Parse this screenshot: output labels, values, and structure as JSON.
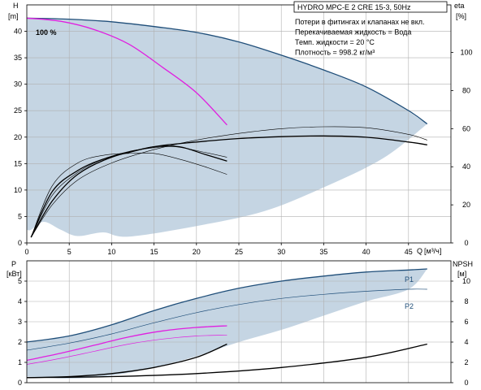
{
  "colors": {
    "envelope": "#c5d5e3",
    "head_curve": "#1f4e79",
    "partial_curve": "#e020e0",
    "efficiency": "#000000",
    "grid": "#b0b0b0",
    "power": "#1f4e79"
  },
  "chart_data": [
    {
      "type": "line",
      "title": "HYDRO MPC-E 2 CRE 15-3, 50Hz",
      "ylabel": "H",
      "yunit": "[m]",
      "y2label": "eta",
      "y2unit": "[%]",
      "xlabel": "Q",
      "xunit": "[м³/ч]",
      "xlim": [
        0,
        50
      ],
      "ylim": [
        0,
        45
      ],
      "y2lim": [
        0,
        125
      ],
      "grid": true,
      "x_ticks": [
        0,
        5,
        10,
        15,
        20,
        25,
        30,
        35,
        40,
        45
      ],
      "y_ticks": [
        0,
        5,
        10,
        15,
        20,
        25,
        30,
        35,
        40
      ],
      "y2_ticks": [
        0,
        20,
        40,
        60,
        80,
        100
      ],
      "annotations": [
        "Потери в фитингах и клапанах не вкл.",
        "Перекачиваемая жидкость = Вода",
        "Темп. жидкости = 20 °C",
        "Плотность = 998.2 кг/м³"
      ],
      "curve_label": "100 %",
      "envelope": {
        "upper": [
          [
            0,
            42.5
          ],
          [
            10,
            41.8
          ],
          [
            20,
            39.8
          ],
          [
            30,
            35.5
          ],
          [
            40,
            29.5
          ],
          [
            47.2,
            22.5
          ]
        ],
        "lower": [
          [
            47.2,
            22.5
          ],
          [
            42,
            16
          ],
          [
            35,
            10.5
          ],
          [
            28,
            6
          ],
          [
            20,
            3.2
          ],
          [
            12,
            1.2
          ],
          [
            9,
            2
          ],
          [
            6,
            1.3
          ],
          [
            4,
            2.5
          ],
          [
            2,
            4
          ],
          [
            0.5,
            2.5
          ],
          [
            0,
            2.5
          ]
        ]
      },
      "series": [
        {
          "role": "head-max",
          "axis": "y",
          "values": [
            [
              0,
              42.5
            ],
            [
              5,
              42.3
            ],
            [
              10,
              41.8
            ],
            [
              15,
              40.9
            ],
            [
              20,
              39.8
            ],
            [
              25,
              38
            ],
            [
              30,
              35.5
            ],
            [
              35,
              32.7
            ],
            [
              40,
              29.5
            ],
            [
              45,
              25
            ],
            [
              47.2,
              22.5
            ]
          ]
        },
        {
          "role": "head-one-pump",
          "axis": "y",
          "values": [
            [
              0,
              42.5
            ],
            [
              4,
              41.9
            ],
            [
              8,
              40.3
            ],
            [
              12,
              37.6
            ],
            [
              16,
              33.2
            ],
            [
              20,
              28.4
            ],
            [
              23.6,
              22.3
            ]
          ]
        },
        {
          "role": "efficiency-two-pumps",
          "axis": "y2",
          "values": [
            [
              0.5,
              3
            ],
            [
              3,
              22
            ],
            [
              6,
              36
            ],
            [
              10,
              45
            ],
            [
              15,
              50.5
            ],
            [
              20,
              53
            ],
            [
              25,
              54.8
            ],
            [
              30,
              55.8
            ],
            [
              35,
              56.2
            ],
            [
              40,
              55.5
            ],
            [
              45,
              53
            ],
            [
              47.2,
              51.5
            ]
          ]
        },
        {
          "role": "efficiency-two-pumps-thin",
          "axis": "y2",
          "values": [
            [
              0.5,
              3
            ],
            [
              3,
              20
            ],
            [
              6,
              33
            ],
            [
              10,
              42
            ],
            [
              15,
              49
            ],
            [
              20,
              54
            ],
            [
              25,
              57.5
            ],
            [
              30,
              60
            ],
            [
              35,
              61
            ],
            [
              40,
              60.5
            ],
            [
              45,
              57
            ],
            [
              47.2,
              54
            ]
          ]
        },
        {
          "role": "efficiency-one-pump",
          "axis": "y2",
          "values": [
            [
              0.5,
              3
            ],
            [
              3,
              27
            ],
            [
              6,
              38
            ],
            [
              9,
              44
            ],
            [
              12,
              47.5
            ],
            [
              15,
              50.5
            ],
            [
              18,
              50.5
            ],
            [
              21,
              46.5
            ],
            [
              23.6,
              43
            ]
          ]
        },
        {
          "role": "efficiency-one-pump-thin",
          "axis": "y2",
          "values": [
            [
              0.5,
              3
            ],
            [
              3,
              25
            ],
            [
              6,
              37
            ],
            [
              9,
              44
            ],
            [
              12,
              48
            ],
            [
              15,
              50
            ],
            [
              17.5,
              50.5
            ],
            [
              20.5,
              48
            ],
            [
              23.6,
              45
            ]
          ]
        },
        {
          "role": "efficiency-one-pump-thin-2",
          "axis": "y2",
          "values": [
            [
              0.5,
              3
            ],
            [
              3,
              30
            ],
            [
              6,
              42
            ],
            [
              9,
              46
            ],
            [
              12,
              47
            ],
            [
              15,
              47
            ],
            [
              18,
              44
            ],
            [
              21,
              40
            ],
            [
              23.6,
              36
            ]
          ]
        }
      ]
    },
    {
      "type": "line",
      "ylabel": "P",
      "yunit": "[кВт]",
      "y2label": "NPSH",
      "y2unit": "[м]",
      "xlim": [
        0,
        50
      ],
      "ylim": [
        0,
        6
      ],
      "y2lim": [
        0,
        12
      ],
      "grid": true,
      "y_ticks": [
        0,
        1,
        2,
        3,
        4,
        5
      ],
      "y2_ticks": [
        0,
        2,
        4,
        6,
        8,
        10
      ],
      "series_labels": [
        "P1",
        "P2"
      ],
      "envelope": {
        "upper": [
          [
            0,
            2
          ],
          [
            5,
            2.3
          ],
          [
            10,
            2.85
          ],
          [
            15,
            3.55
          ],
          [
            20,
            4.15
          ],
          [
            25,
            4.65
          ],
          [
            30,
            5.0
          ],
          [
            35,
            5.25
          ],
          [
            40,
            5.45
          ],
          [
            45,
            5.55
          ],
          [
            47.2,
            5.6
          ]
        ],
        "lower": [
          [
            47.2,
            5.6
          ],
          [
            45,
            4.6
          ],
          [
            40,
            4.0
          ],
          [
            35,
            3.3
          ],
          [
            30,
            2.6
          ],
          [
            25,
            2.0
          ],
          [
            20,
            1.3
          ],
          [
            15,
            0.75
          ],
          [
            10,
            0.35
          ],
          [
            5,
            0.2
          ],
          [
            0,
            0.3
          ]
        ]
      },
      "series": [
        {
          "name": "P1",
          "axis": "y",
          "values": [
            [
              0,
              2
            ],
            [
              5,
              2.3
            ],
            [
              10,
              2.85
            ],
            [
              15,
              3.55
            ],
            [
              20,
              4.15
            ],
            [
              25,
              4.65
            ],
            [
              30,
              5.0
            ],
            [
              35,
              5.25
            ],
            [
              40,
              5.45
            ],
            [
              45,
              5.55
            ],
            [
              47.2,
              5.6
            ]
          ]
        },
        {
          "name": "P2",
          "axis": "y",
          "values": [
            [
              0,
              1.6
            ],
            [
              5,
              1.95
            ],
            [
              10,
              2.4
            ],
            [
              15,
              2.95
            ],
            [
              20,
              3.45
            ],
            [
              25,
              3.85
            ],
            [
              30,
              4.15
            ],
            [
              35,
              4.35
            ],
            [
              40,
              4.5
            ],
            [
              45,
              4.6
            ],
            [
              47.2,
              4.6
            ]
          ]
        },
        {
          "role": "P1-one-pump",
          "axis": "y",
          "values": [
            [
              0,
              1.1
            ],
            [
              4,
              1.45
            ],
            [
              8,
              1.85
            ],
            [
              12,
              2.25
            ],
            [
              16,
              2.55
            ],
            [
              20,
              2.72
            ],
            [
              23.6,
              2.8
            ]
          ]
        },
        {
          "role": "P2-one-pump",
          "axis": "y",
          "values": [
            [
              0,
              0.9
            ],
            [
              4,
              1.2
            ],
            [
              8,
              1.55
            ],
            [
              12,
              1.9
            ],
            [
              16,
              2.15
            ],
            [
              20,
              2.3
            ],
            [
              23.6,
              2.35
            ]
          ]
        },
        {
          "role": "NPSH-one-pump",
          "axis": "y2",
          "values": [
            [
              0,
              0.5
            ],
            [
              5,
              0.6
            ],
            [
              10,
              0.9
            ],
            [
              15,
              1.5
            ],
            [
              20,
              2.5
            ],
            [
              23.6,
              3.8
            ]
          ]
        },
        {
          "role": "NPSH-two-pumps",
          "axis": "y2",
          "values": [
            [
              0,
              0.5
            ],
            [
              10,
              0.6
            ],
            [
              20,
              0.9
            ],
            [
              30,
              1.5
            ],
            [
              40,
              2.5
            ],
            [
              47.2,
              3.8
            ]
          ]
        }
      ]
    }
  ]
}
